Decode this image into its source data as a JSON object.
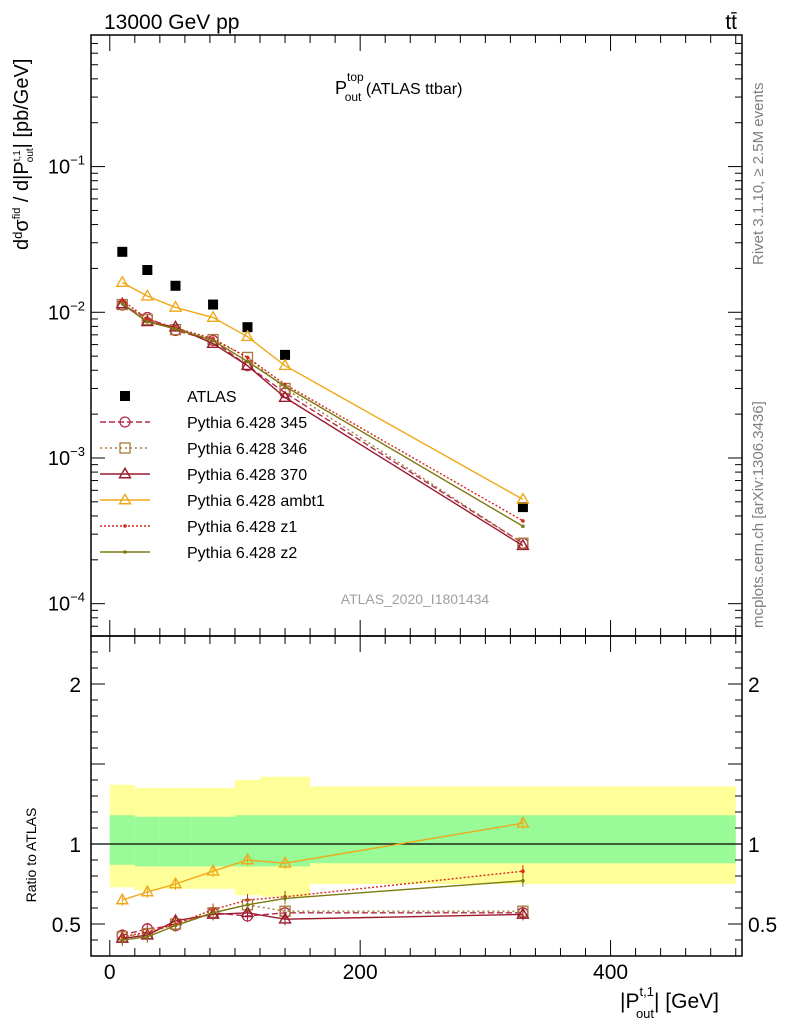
{
  "header": {
    "energy_label": "13000 GeV pp",
    "process_label": "tt̄",
    "plot_title_main": "P",
    "plot_title_sup": "top",
    "plot_title_sub": "out",
    "plot_title_rest": " (ATLAS ttbar)",
    "analysis_id": "ATLAS_2020_I1801434"
  },
  "side_labels": {
    "rivet": "Rivet 3.1.10, ≥ 2.5M events",
    "mcplots": "mcplots.cern.ch [arXiv:1306.3436]"
  },
  "axes": {
    "xlabel": "|P_out^t,1| [GeV]",
    "xlabel_main": "|P",
    "xlabel_sup": "t,1",
    "xlabel_sub": "out",
    "xlabel_rest": "| [GeV]",
    "ylabel": "dσ^fid / d|P_out^t,1| [pb/GeV]",
    "ratio_ylabel": "Ratio to ATLAS"
  },
  "colors": {
    "data": "#000000",
    "p345": "#b22c4a",
    "p346": "#a57a3b",
    "p370": "#9b1a2e",
    "ambt1": "#f0a818",
    "z1": "#d42a1e",
    "z2": "#7c7a10",
    "band_green": "#98fb98",
    "band_yellow": "#ffff99"
  },
  "chart_data": {
    "type": "scatter",
    "x_range": [
      -15,
      505
    ],
    "upper_y_log": true,
    "upper_y_range": [
      6e-05,
      0.8
    ],
    "upper_y_ticks": [
      "10^-4",
      "10^-3",
      "10^-2",
      "10^-1"
    ],
    "ratio_y_range": [
      0.3,
      2.3
    ],
    "ratio_y_ticks": [
      0.5,
      1,
      2
    ],
    "x_ticks": [
      0,
      200,
      400
    ],
    "x": [
      10,
      30,
      52.5,
      82.5,
      110,
      140,
      330
    ],
    "x_bin_edges": [
      0,
      20,
      40,
      65,
      100,
      120,
      160,
      500
    ],
    "series": [
      {
        "name": "ATLAS",
        "key": "data",
        "marker": "square",
        "values": [
          0.026,
          0.0195,
          0.0152,
          0.0113,
          0.0079,
          0.0051,
          0.00046
        ]
      },
      {
        "name": "Pythia 6.428 345",
        "key": "p345",
        "marker": "circle",
        "dash": "6,3",
        "values": [
          0.0112,
          0.0092,
          0.0075,
          0.0064,
          0.0043,
          0.0028,
          0.00026
        ],
        "ratio": [
          0.43,
          0.47,
          0.49,
          0.57,
          0.55,
          0.57,
          0.57
        ]
      },
      {
        "name": "Pythia 6.428 346",
        "key": "p346",
        "marker": "square-open",
        "dash": "2,3",
        "values": [
          0.0113,
          0.0089,
          0.0076,
          0.0065,
          0.0049,
          0.003,
          0.00026
        ],
        "ratio": [
          0.42,
          0.44,
          0.5,
          0.57,
          0.62,
          0.58,
          0.58
        ]
      },
      {
        "name": "Pythia 6.428 370",
        "key": "p370",
        "marker": "triangle-open",
        "dash": "",
        "values": [
          0.0114,
          0.0086,
          0.0079,
          0.0061,
          0.0043,
          0.0026,
          0.00025
        ],
        "ratio": [
          0.41,
          0.43,
          0.52,
          0.56,
          0.57,
          0.53,
          0.56
        ]
      },
      {
        "name": "Pythia 6.428 ambt1",
        "key": "ambt1",
        "marker": "triangle-open",
        "dash": "",
        "values": [
          0.016,
          0.0129,
          0.0108,
          0.0092,
          0.0068,
          0.0043,
          0.00052
        ],
        "ratio": [
          0.65,
          0.7,
          0.75,
          0.83,
          0.9,
          0.88,
          1.13
        ]
      },
      {
        "name": "Pythia 6.428 z1",
        "key": "z1",
        "marker": "dot",
        "dash": "2,2",
        "values": [
          0.0121,
          0.009,
          0.0078,
          0.0066,
          0.0049,
          0.0032,
          0.00037
        ],
        "ratio": [
          0.42,
          0.45,
          0.5,
          0.59,
          0.65,
          0.67,
          0.83
        ]
      },
      {
        "name": "Pythia 6.428 z2",
        "key": "z2",
        "marker": "dot",
        "dash": "",
        "values": [
          0.0115,
          0.0086,
          0.0077,
          0.0064,
          0.0046,
          0.0031,
          0.00034
        ],
        "ratio": [
          0.4,
          0.42,
          0.49,
          0.57,
          0.62,
          0.66,
          0.77
        ]
      }
    ],
    "ratio_band_stat": [
      [
        0.87,
        1.18
      ],
      [
        0.86,
        1.17
      ],
      [
        0.86,
        1.17
      ],
      [
        0.86,
        1.17
      ],
      [
        0.86,
        1.18
      ],
      [
        0.86,
        1.18
      ],
      [
        0.88,
        1.18
      ]
    ],
    "ratio_band_total": [
      [
        0.73,
        1.37
      ],
      [
        0.71,
        1.35
      ],
      [
        0.72,
        1.35
      ],
      [
        0.72,
        1.35
      ],
      [
        0.68,
        1.4
      ],
      [
        0.67,
        1.42
      ],
      [
        0.75,
        1.36
      ]
    ]
  }
}
